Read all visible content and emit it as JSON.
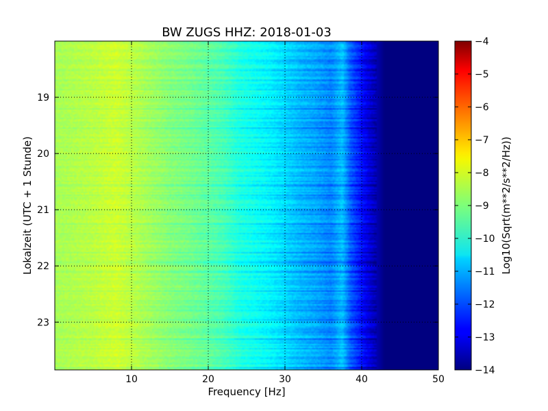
{
  "chart_data": {
    "type": "heatmap",
    "title": "BW ZUGS HHZ: 2018-01-03",
    "xlabel": "Frequency [Hz]",
    "ylabel": "Lokalzeit (UTC + 1 Stunde)",
    "xlim": [
      0,
      50
    ],
    "ylim": [
      18.0,
      23.85
    ],
    "y_inverted": true,
    "x_ticks": [
      10,
      20,
      30,
      40,
      50
    ],
    "y_ticks": [
      19,
      20,
      21,
      22,
      23
    ],
    "grid": true,
    "colormap": "jet",
    "colorbar": {
      "label": "Log10(Sqrt(m**2/s**2/Hz))",
      "range": [
        -14,
        -4
      ],
      "ticks": [
        -4,
        -5,
        -6,
        -7,
        -8,
        -9,
        -10,
        -11,
        -12,
        -13,
        -14
      ]
    },
    "profile": {
      "frequency_hz": [
        0,
        5,
        8,
        10,
        12,
        15,
        18,
        20,
        22,
        24,
        26,
        28,
        30,
        32,
        34,
        36,
        37.5,
        38.5,
        40,
        41.5,
        43,
        50
      ],
      "log10_amplitude": [
        -8.6,
        -8.4,
        -8.2,
        -8.4,
        -8.6,
        -8.9,
        -9.1,
        -9.3,
        -9.5,
        -9.9,
        -10.1,
        -10.3,
        -10.6,
        -10.9,
        -11.1,
        -11.4,
        -10.8,
        -11.8,
        -12.6,
        -13.3,
        -14,
        -14
      ]
    }
  }
}
